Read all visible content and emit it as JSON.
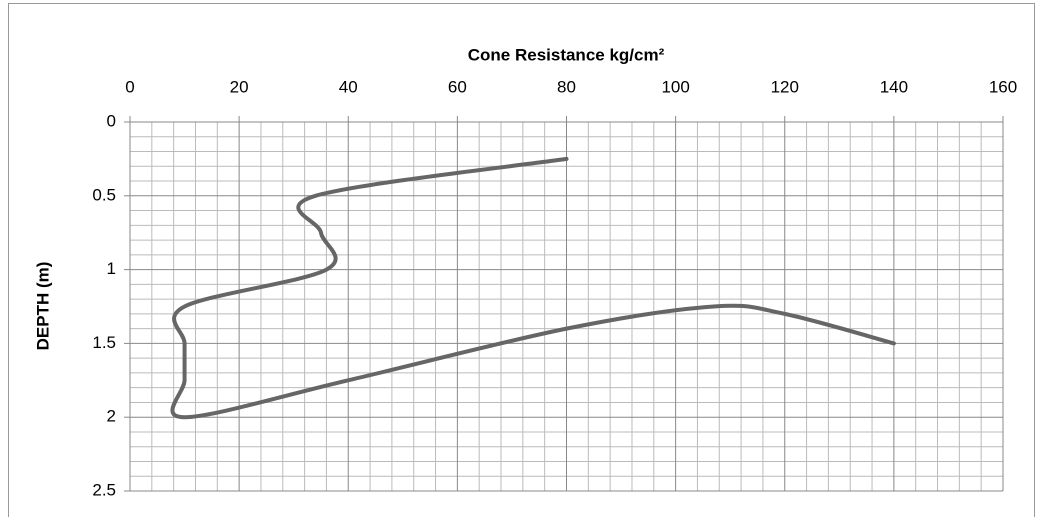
{
  "chart_data": {
    "type": "line",
    "title": "Cone Resistance kg/cm²",
    "y_label": "DEPTH (m)",
    "series": [
      {
        "color": "#666666",
        "x": [
          80,
          34,
          35,
          36,
          10,
          10,
          10,
          10,
          40,
          80,
          107,
          120,
          140
        ],
        "y": [
          0.25,
          0.5,
          0.75,
          1.0,
          1.25,
          1.5,
          1.75,
          2.0,
          1.75,
          1.4,
          1.25,
          1.3,
          1.5
        ]
      }
    ],
    "xlim": [
      0,
      160
    ],
    "xticks": [
      0,
      20,
      40,
      60,
      80,
      100,
      120,
      140,
      160
    ],
    "ylim": [
      0,
      2.5
    ],
    "yticks": [
      0,
      0.5,
      1,
      1.5,
      2,
      2.5
    ],
    "y_inverted": true,
    "x_axis_position": "top",
    "grid": {
      "major": true,
      "minor": true
    }
  }
}
